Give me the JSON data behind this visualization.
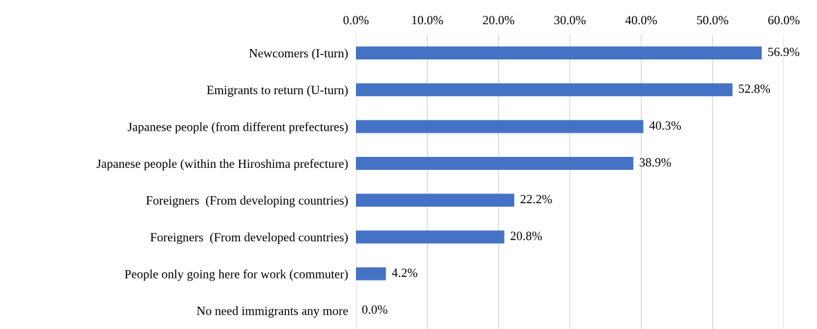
{
  "chart_data": {
    "type": "bar",
    "orientation": "horizontal",
    "categories": [
      "Newcomers (I-turn)",
      "Emigrants to return (U-turn)",
      "Japanese people (from different prefectures)",
      "Japanese people (within the Hiroshima prefecture)",
      "Foreigners  (From developing countries)",
      "Foreigners  (From developed countries)",
      "People only going here for work (commuter)",
      "No need immigrants any more"
    ],
    "values": [
      56.9,
      52.8,
      40.3,
      38.9,
      22.2,
      20.8,
      4.2,
      0.0
    ],
    "value_labels": [
      "56.9%",
      "52.8%",
      "40.3%",
      "38.9%",
      "22.2%",
      "20.8%",
      "4.2%",
      "0.0%"
    ],
    "color": "#4472c4",
    "xlim": [
      0,
      60
    ],
    "xticks": [
      {
        "value": 0,
        "label": "0.0%"
      },
      {
        "value": 10,
        "label": "10.0%"
      },
      {
        "value": 20,
        "label": "20.0%"
      },
      {
        "value": 30,
        "label": "30.0%"
      },
      {
        "value": 40,
        "label": "40.0%"
      },
      {
        "value": 50,
        "label": "50.0%"
      },
      {
        "value": 60,
        "label": "60.0%"
      }
    ],
    "grid": "x",
    "legend": false
  }
}
